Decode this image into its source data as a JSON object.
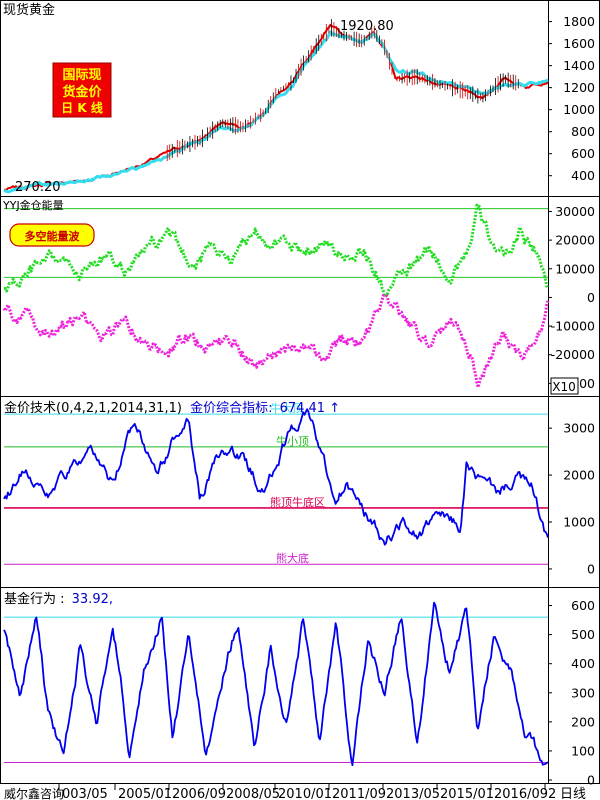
{
  "chart_data": [
    {
      "type": "line",
      "panel": "price",
      "title": "现货黄金",
      "badge_lines": [
        "国际现",
        "货金价",
        "日 K 线"
      ],
      "annotations": {
        "high": "1920.80",
        "low": "270.20"
      },
      "ylim": [
        252,
        1960
      ],
      "yticks": [
        400,
        600,
        800,
        1000,
        1200,
        1400,
        1600,
        1800
      ],
      "ytick_labels": [
        "400",
        "600",
        "800",
        "1000",
        "1200",
        "1400",
        "1600",
        "1800"
      ],
      "series": [
        {
          "color": "#E00000",
          "x": [
            0,
            0.04,
            0.08,
            0.12,
            0.16,
            0.2,
            0.24,
            0.28,
            0.32,
            0.36,
            0.4,
            0.44,
            0.48,
            0.5,
            0.53,
            0.55,
            0.57,
            0.6,
            0.62,
            0.64,
            0.66,
            0.68,
            0.7,
            0.72,
            0.76,
            0.8,
            0.84,
            0.88,
            0.92,
            0.96,
            1.0
          ],
          "y": [
            272,
            300,
            325,
            340,
            370,
            420,
            480,
            560,
            650,
            720,
            880,
            840,
            980,
            1150,
            1250,
            1420,
            1550,
            1750,
            1680,
            1650,
            1620,
            1710,
            1560,
            1280,
            1300,
            1230,
            1180,
            1110,
            1280,
            1210,
            1270
          ]
        },
        {
          "color": "#33DDEE",
          "x": [
            0,
            0.04,
            0.08,
            0.12,
            0.16,
            0.2,
            0.24,
            0.28,
            0.32,
            0.36,
            0.4,
            0.44,
            0.48,
            0.5,
            0.53,
            0.55,
            0.57,
            0.6,
            0.62,
            0.64,
            0.66,
            0.68,
            0.7,
            0.72,
            0.76,
            0.8,
            0.84,
            0.88,
            0.92,
            0.96,
            1.0
          ],
          "y": [
            270,
            292,
            318,
            335,
            360,
            405,
            465,
            540,
            625,
            700,
            840,
            825,
            960,
            1110,
            1210,
            1370,
            1500,
            1690,
            1660,
            1640,
            1635,
            1670,
            1560,
            1370,
            1330,
            1255,
            1210,
            1140,
            1240,
            1240,
            1260
          ]
        }
      ]
    },
    {
      "type": "line",
      "panel": "energy",
      "title": "YYJ金仓能量",
      "badge": "多空能量波",
      "ylim": [
        -33000,
        34000
      ],
      "yticks": [
        -30000,
        -20000,
        -10000,
        0,
        10000,
        20000,
        30000
      ],
      "ytick_labels": [
        "-30000",
        "-20000",
        "-10000",
        "0",
        "10000",
        "20000",
        "30000"
      ],
      "hlines": [
        7000,
        31000
      ],
      "multiplier": "X10",
      "series": [
        {
          "color": "#22DD22",
          "x": [
            0,
            0.03,
            0.06,
            0.1,
            0.14,
            0.18,
            0.22,
            0.26,
            0.3,
            0.34,
            0.38,
            0.42,
            0.46,
            0.5,
            0.54,
            0.58,
            0.62,
            0.66,
            0.7,
            0.74,
            0.78,
            0.82,
            0.86,
            0.87,
            0.89,
            0.92,
            0.95,
            0.98,
            1.0
          ],
          "y": [
            3000,
            6000,
            10000,
            12000,
            9000,
            14000,
            9000,
            16000,
            20000,
            12000,
            18000,
            14000,
            24000,
            20000,
            15000,
            20000,
            14000,
            18000,
            2000,
            8000,
            16000,
            8000,
            20000,
            30000,
            22000,
            12000,
            24000,
            16000,
            2000
          ]
        },
        {
          "color": "#EE22DD",
          "x": [
            0,
            0.03,
            0.06,
            0.1,
            0.14,
            0.18,
            0.22,
            0.26,
            0.3,
            0.34,
            0.38,
            0.42,
            0.46,
            0.5,
            0.54,
            0.58,
            0.62,
            0.66,
            0.7,
            0.74,
            0.78,
            0.82,
            0.86,
            0.87,
            0.89,
            0.92,
            0.95,
            0.98,
            1.0
          ],
          "y": [
            -3000,
            -7000,
            -9000,
            -12000,
            -8000,
            -14000,
            -9000,
            -16000,
            -20000,
            -13000,
            -18000,
            -14000,
            -25000,
            -20000,
            -16000,
            -22000,
            -14000,
            -18000,
            -2000,
            -8000,
            -16000,
            -8000,
            -20000,
            -30000,
            -22000,
            -14000,
            -22000,
            -16000,
            -2000
          ]
        }
      ]
    },
    {
      "type": "line",
      "panel": "indicator",
      "title": "金价技术(0,4,2,1,2014,31,1)",
      "value_label": "金价综合指标:",
      "value": "674.41",
      "value_arrow": "↑",
      "ylim": [
        -300,
        3600
      ],
      "yticks": [
        0,
        1000,
        2000,
        3000
      ],
      "ytick_labels": [
        "0",
        "1000",
        "2000",
        "3000"
      ],
      "levels": [
        {
          "value": 3300,
          "label": "牛大顶",
          "color": "#33DDEE"
        },
        {
          "value": 2600,
          "label": "牛小顶",
          "color": "#22BB22"
        },
        {
          "value": 1300,
          "label": "熊顶牛底区",
          "color": "#DD0055"
        },
        {
          "value": 100,
          "label": "熊大底",
          "color": "#CC22CC"
        }
      ],
      "series": [
        {
          "color": "#0000EE",
          "x": [
            0,
            0.04,
            0.08,
            0.12,
            0.16,
            0.2,
            0.24,
            0.28,
            0.32,
            0.34,
            0.36,
            0.4,
            0.44,
            0.48,
            0.52,
            0.56,
            0.59,
            0.61,
            0.63,
            0.66,
            0.7,
            0.73,
            0.76,
            0.8,
            0.84,
            0.85,
            0.88,
            0.91,
            0.94,
            0.97,
            1.0
          ],
          "y": [
            1500,
            2200,
            1600,
            2100,
            2400,
            1800,
            3200,
            2100,
            2900,
            3100,
            1500,
            2500,
            2300,
            1600,
            2800,
            3400,
            2200,
            1300,
            1800,
            1200,
            600,
            1000,
            700,
            1100,
            900,
            2200,
            1800,
            1600,
            2000,
            1700,
            600
          ]
        }
      ]
    },
    {
      "type": "line",
      "panel": "fund",
      "title": "基金行为 :",
      "value": "33.92,",
      "ylim": [
        0,
        650
      ],
      "yticks": [
        0,
        100,
        200,
        300,
        400,
        500,
        600
      ],
      "ytick_labels": [
        "0",
        "100",
        "200",
        "300",
        "400",
        "500",
        "600"
      ],
      "levels": [
        {
          "value": 560,
          "color": "#33DDEE"
        },
        {
          "value": 60,
          "color": "#CC22CC"
        }
      ],
      "xtick_labels": [
        "威尔鑫咨询",
        "003/05",
        "2005/01",
        "2006/09",
        "2008/05",
        "2010/01",
        "2011/09",
        "2013/05",
        "2015/01",
        "2016/09",
        "2",
        "日线"
      ],
      "series": [
        {
          "color": "#0000EE",
          "x": [
            0,
            0.03,
            0.06,
            0.08,
            0.11,
            0.14,
            0.17,
            0.2,
            0.23,
            0.26,
            0.29,
            0.31,
            0.34,
            0.37,
            0.4,
            0.43,
            0.46,
            0.49,
            0.52,
            0.55,
            0.58,
            0.61,
            0.64,
            0.67,
            0.7,
            0.73,
            0.76,
            0.79,
            0.82,
            0.85,
            0.87,
            0.9,
            0.93,
            0.96,
            1.0
          ],
          "y": [
            520,
            300,
            560,
            250,
            80,
            450,
            200,
            560,
            120,
            400,
            580,
            150,
            500,
            80,
            350,
            560,
            100,
            450,
            200,
            560,
            150,
            540,
            60,
            480,
            300,
            560,
            120,
            600,
            380,
            580,
            200,
            500,
            380,
            150,
            30
          ]
        }
      ]
    }
  ]
}
